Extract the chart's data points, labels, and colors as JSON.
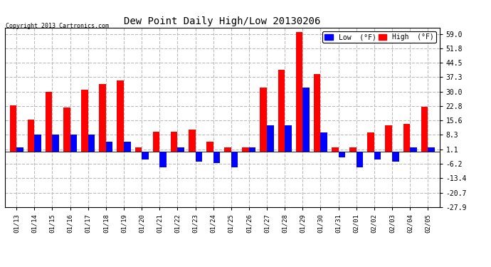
{
  "title": "Dew Point Daily High/Low 20130206",
  "copyright": "Copyright 2013 Cartronics.com",
  "dates": [
    "01/13",
    "01/14",
    "01/15",
    "01/16",
    "01/17",
    "01/18",
    "01/19",
    "01/20",
    "01/21",
    "01/22",
    "01/23",
    "01/24",
    "01/25",
    "01/26",
    "01/27",
    "01/28",
    "01/29",
    "01/30",
    "01/31",
    "02/01",
    "02/02",
    "02/03",
    "02/04",
    "02/05"
  ],
  "high": [
    23.0,
    16.0,
    30.0,
    22.0,
    31.0,
    34.0,
    35.5,
    2.0,
    10.0,
    10.0,
    11.0,
    5.0,
    2.0,
    2.0,
    32.0,
    41.0,
    60.0,
    39.0,
    2.0,
    2.0,
    9.5,
    13.0,
    14.0,
    22.5
  ],
  "low": [
    2.0,
    8.5,
    8.5,
    8.5,
    8.5,
    5.0,
    5.0,
    -4.0,
    -8.0,
    2.0,
    -5.0,
    -6.0,
    -8.0,
    2.0,
    13.0,
    13.0,
    32.0,
    9.5,
    -3.0,
    -8.0,
    -4.0,
    -5.0,
    2.0,
    2.0
  ],
  "yticks": [
    59.0,
    51.8,
    44.5,
    37.3,
    30.0,
    22.8,
    15.6,
    8.3,
    1.1,
    -6.2,
    -13.4,
    -20.7,
    -27.9
  ],
  "ymin": -27.9,
  "ymax": 62.0,
  "high_color": "#FF0000",
  "low_color": "#0000FF",
  "bg_color": "#FFFFFF",
  "grid_color": "#BBBBBB",
  "bar_width": 0.38,
  "legend_low_label": "Low  (°F)",
  "legend_high_label": "High  (°F)"
}
